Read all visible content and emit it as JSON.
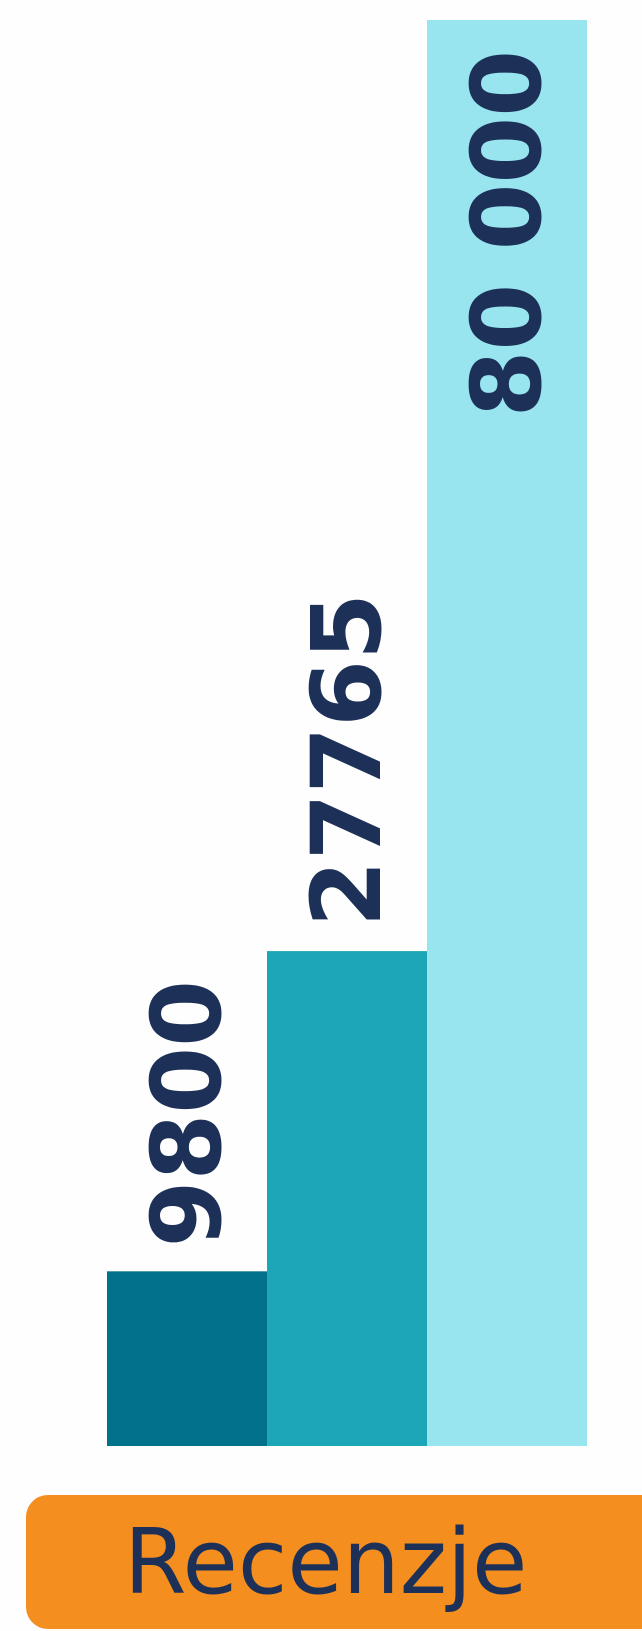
{
  "chart_data": {
    "type": "bar",
    "categories": [
      "",
      "",
      ""
    ],
    "values": [
      9800,
      27765,
      80000
    ],
    "value_labels": [
      "9800",
      "27765",
      "80 000"
    ],
    "ylim": [
      0,
      80000
    ],
    "grid": false,
    "legend": "none",
    "colors": [
      "#02728b",
      "#1ca6b8",
      "#98e5f0"
    ],
    "label_color": "#1d3158"
  },
  "footer": {
    "label": "Recenzje",
    "background": "#f48e1f",
    "text_color": "#1d3158"
  }
}
